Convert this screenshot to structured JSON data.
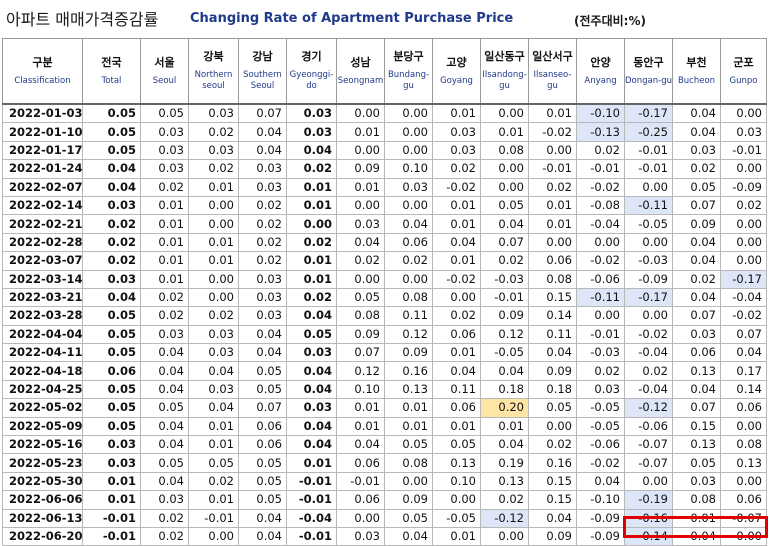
{
  "header": {
    "title_ko": "아파트 매매가격증감률",
    "title_en": "Changing Rate of Apartment Purchase Price",
    "unit": "(전주대비:%)"
  },
  "colors": {
    "negative_highlight": "#dce6f7",
    "yellow_highlight": "#ffe5a3",
    "title_blue": "#1f3a8a",
    "marker_red": "#e00000"
  },
  "columns": [
    {
      "ko": "구분",
      "en": "Classification"
    },
    {
      "ko": "전국",
      "en": "Total"
    },
    {
      "ko": "서울",
      "en": "Seoul"
    },
    {
      "ko": "강북",
      "en": "Northern seoul"
    },
    {
      "ko": "강남",
      "en": "Southern Seoul"
    },
    {
      "ko": "경기",
      "en": "Gyeonggi-do"
    },
    {
      "ko": "성남",
      "en": "Seongnam"
    },
    {
      "ko": "분당구",
      "en": "Bundang-gu"
    },
    {
      "ko": "고양",
      "en": "Goyang"
    },
    {
      "ko": "일산동구",
      "en": "Ilsandong-gu"
    },
    {
      "ko": "일산서구",
      "en": "Ilsanseo-gu"
    },
    {
      "ko": "안양",
      "en": "Anyang"
    },
    {
      "ko": "동안구",
      "en": "Dongan-gu"
    },
    {
      "ko": "부천",
      "en": "Bucheon"
    },
    {
      "ko": "군포",
      "en": "Gunpo"
    }
  ],
  "chart_data": {
    "type": "table",
    "title": "Changing Rate of Apartment Purchase Price",
    "unit": "(전주대비:%)",
    "row_labels": [
      "2022-01-03",
      "2022-01-10",
      "2022-01-17",
      "2022-01-24",
      "2022-02-07",
      "2022-02-14",
      "2022-02-21",
      "2022-02-28",
      "2022-03-07",
      "2022-03-14",
      "2022-03-21",
      "2022-03-28",
      "2022-04-04",
      "2022-04-11",
      "2022-04-18",
      "2022-04-25",
      "2022-05-02",
      "2022-05-09",
      "2022-05-16",
      "2022-05-23",
      "2022-05-30",
      "2022-06-06",
      "2022-06-13",
      "2022-06-20"
    ],
    "rows": [
      [
        "0.05",
        "0.05",
        "0.03",
        "0.07",
        "0.03",
        "0.00",
        "0.00",
        "0.01",
        "0.00",
        "0.01",
        "-0.10",
        "-0.17",
        "0.04",
        "0.00"
      ],
      [
        "0.05",
        "0.03",
        "0.02",
        "0.04",
        "0.03",
        "0.01",
        "0.00",
        "0.03",
        "0.01",
        "-0.02",
        "-0.13",
        "-0.25",
        "0.04",
        "0.03"
      ],
      [
        "0.05",
        "0.03",
        "0.03",
        "0.04",
        "0.04",
        "0.00",
        "0.00",
        "0.03",
        "0.08",
        "0.00",
        "0.02",
        "-0.01",
        "0.03",
        "-0.01"
      ],
      [
        "0.04",
        "0.03",
        "0.02",
        "0.03",
        "0.02",
        "0.09",
        "0.10",
        "0.02",
        "0.00",
        "-0.01",
        "-0.01",
        "-0.01",
        "0.02",
        "0.00"
      ],
      [
        "0.04",
        "0.02",
        "0.01",
        "0.03",
        "0.01",
        "0.01",
        "0.03",
        "-0.02",
        "0.00",
        "0.02",
        "-0.02",
        "0.00",
        "0.05",
        "-0.09"
      ],
      [
        "0.03",
        "0.01",
        "0.00",
        "0.02",
        "0.01",
        "0.00",
        "0.00",
        "0.01",
        "0.05",
        "0.01",
        "-0.08",
        "-0.11",
        "0.07",
        "0.02"
      ],
      [
        "0.02",
        "0.01",
        "0.00",
        "0.02",
        "0.00",
        "0.03",
        "0.04",
        "0.01",
        "0.04",
        "0.01",
        "-0.04",
        "-0.05",
        "0.09",
        "0.00"
      ],
      [
        "0.02",
        "0.01",
        "0.01",
        "0.02",
        "0.02",
        "0.04",
        "0.06",
        "0.04",
        "0.07",
        "0.00",
        "0.00",
        "0.00",
        "0.04",
        "0.00"
      ],
      [
        "0.02",
        "0.01",
        "0.01",
        "0.02",
        "0.01",
        "0.02",
        "0.02",
        "0.01",
        "0.02",
        "0.06",
        "-0.02",
        "-0.03",
        "0.04",
        "0.00"
      ],
      [
        "0.03",
        "0.01",
        "0.00",
        "0.03",
        "0.01",
        "0.00",
        "0.00",
        "-0.02",
        "-0.03",
        "0.08",
        "-0.06",
        "-0.09",
        "0.02",
        "-0.17"
      ],
      [
        "0.04",
        "0.02",
        "0.00",
        "0.03",
        "0.02",
        "0.05",
        "0.08",
        "0.00",
        "-0.01",
        "0.15",
        "-0.11",
        "-0.17",
        "0.04",
        "-0.04"
      ],
      [
        "0.05",
        "0.02",
        "0.02",
        "0.03",
        "0.04",
        "0.08",
        "0.11",
        "0.02",
        "0.09",
        "0.14",
        "0.00",
        "0.00",
        "0.07",
        "-0.02"
      ],
      [
        "0.05",
        "0.03",
        "0.03",
        "0.04",
        "0.05",
        "0.09",
        "0.12",
        "0.06",
        "0.12",
        "0.11",
        "-0.01",
        "-0.02",
        "0.03",
        "0.07"
      ],
      [
        "0.05",
        "0.04",
        "0.03",
        "0.04",
        "0.03",
        "0.07",
        "0.09",
        "0.01",
        "-0.05",
        "0.04",
        "-0.03",
        "-0.04",
        "0.06",
        "0.04"
      ],
      [
        "0.06",
        "0.04",
        "0.04",
        "0.05",
        "0.04",
        "0.12",
        "0.16",
        "0.04",
        "0.04",
        "0.09",
        "0.02",
        "0.02",
        "0.13",
        "0.17"
      ],
      [
        "0.05",
        "0.04",
        "0.03",
        "0.05",
        "0.04",
        "0.10",
        "0.13",
        "0.11",
        "0.18",
        "0.18",
        "0.03",
        "-0.04",
        "0.04",
        "0.14"
      ],
      [
        "0.05",
        "0.05",
        "0.04",
        "0.07",
        "0.03",
        "0.01",
        "0.01",
        "0.06",
        "0.20",
        "0.05",
        "-0.05",
        "-0.12",
        "0.07",
        "0.06"
      ],
      [
        "0.05",
        "0.04",
        "0.01",
        "0.06",
        "0.04",
        "0.01",
        "0.01",
        "0.01",
        "0.01",
        "0.00",
        "-0.05",
        "-0.06",
        "0.15",
        "0.00"
      ],
      [
        "0.03",
        "0.04",
        "0.01",
        "0.06",
        "0.04",
        "0.04",
        "0.05",
        "0.05",
        "0.04",
        "0.02",
        "-0.06",
        "-0.07",
        "0.13",
        "0.08"
      ],
      [
        "0.03",
        "0.05",
        "0.05",
        "0.05",
        "0.01",
        "0.06",
        "0.08",
        "0.13",
        "0.19",
        "0.16",
        "-0.02",
        "-0.07",
        "0.05",
        "0.13"
      ],
      [
        "0.01",
        "0.04",
        "0.02",
        "0.05",
        "-0.01",
        "-0.01",
        "0.00",
        "0.10",
        "0.13",
        "0.15",
        "0.04",
        "0.00",
        "0.03",
        "0.00"
      ],
      [
        "0.01",
        "0.03",
        "0.01",
        "0.05",
        "-0.01",
        "0.06",
        "0.09",
        "0.00",
        "0.02",
        "0.15",
        "-0.10",
        "-0.19",
        "0.08",
        "0.06"
      ],
      [
        "-0.01",
        "0.02",
        "-0.01",
        "0.04",
        "-0.04",
        "0.00",
        "0.05",
        "-0.05",
        "-0.12",
        "0.04",
        "-0.09",
        "-0.16",
        "0.01",
        "-0.07"
      ],
      [
        "-0.01",
        "0.02",
        "0.00",
        "0.04",
        "-0.01",
        "0.03",
        "0.04",
        "0.01",
        "0.00",
        "0.09",
        "-0.09",
        "-0.14",
        "0.04",
        "0.00"
      ]
    ],
    "shaded_cells": [
      [
        0,
        11
      ],
      [
        0,
        12
      ],
      [
        1,
        11
      ],
      [
        1,
        12
      ],
      [
        5,
        12
      ],
      [
        9,
        14
      ],
      [
        10,
        11
      ],
      [
        10,
        12
      ],
      [
        16,
        12
      ],
      [
        21,
        12
      ],
      [
        22,
        9
      ],
      [
        22,
        12
      ],
      [
        23,
        12
      ]
    ],
    "yellow_cells": [
      [
        16,
        9
      ]
    ],
    "marked_row": 23,
    "marked_columns": [
      12,
      13,
      14
    ]
  }
}
